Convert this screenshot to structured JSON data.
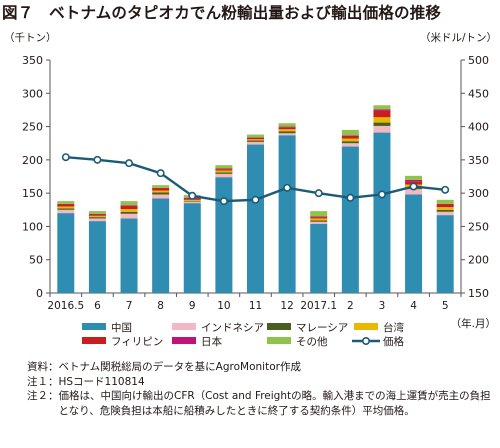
{
  "figure": {
    "title": "図７　ベトナムのタピオカでん粉輸出量および輸出価格の推移",
    "unit_left": "（千トン）",
    "unit_right": "（米ドル/トン）",
    "x_unit": "（年.月）"
  },
  "chart_data": {
    "type": "bar",
    "stacked": true,
    "title": "図７　ベトナムのタピオカでん粉輸出量および輸出価格の推移",
    "categories": [
      "2016.5",
      "6",
      "7",
      "8",
      "9",
      "10",
      "11",
      "12",
      "2017.1",
      "2",
      "3",
      "4",
      "5"
    ],
    "y_left": {
      "label": "（千トン）",
      "lim": [
        0,
        350
      ],
      "ticks": [
        0,
        50,
        100,
        150,
        200,
        250,
        300,
        350
      ]
    },
    "y_right": {
      "label": "（米ドル/トン）",
      "lim": [
        150,
        500
      ],
      "ticks": [
        150,
        200,
        250,
        300,
        350,
        400,
        450,
        500
      ]
    },
    "xlabel": "（年.月）",
    "series": [
      {
        "name": "中国",
        "color": "#2e8db0",
        "values": [
          120,
          108,
          112,
          142,
          135,
          174,
          223,
          237,
          104,
          220,
          241,
          148,
          117
        ]
      },
      {
        "name": "インドネシア",
        "color": "#f2b8c4",
        "values": [
          5,
          4,
          7,
          6,
          2,
          5,
          4,
          3,
          3,
          5,
          10,
          8,
          5
        ]
      },
      {
        "name": "マレーシア",
        "color": "#4a5e23",
        "values": [
          2,
          2,
          3,
          3,
          1,
          2,
          2,
          3,
          2,
          3,
          5,
          3,
          3
        ]
      },
      {
        "name": "台湾",
        "color": "#e9b900",
        "values": [
          3,
          2,
          4,
          3,
          2,
          3,
          2,
          3,
          3,
          4,
          8,
          4,
          4
        ]
      },
      {
        "name": "フィリピン",
        "color": "#c81e1e",
        "values": [
          3,
          2,
          5,
          3,
          2,
          2,
          2,
          3,
          2,
          4,
          10,
          5,
          4
        ]
      },
      {
        "name": "日本",
        "color": "#c2127a",
        "values": [
          1,
          1,
          1,
          1,
          1,
          1,
          1,
          1,
          1,
          1,
          2,
          2,
          1
        ]
      },
      {
        "name": "その他",
        "color": "#8ec44a",
        "values": [
          4,
          4,
          6,
          4,
          4,
          5,
          4,
          5,
          8,
          8,
          6,
          6,
          6
        ]
      }
    ],
    "line": {
      "name": "価格",
      "axis": "right",
      "color": "#1d5a77",
      "values": [
        354,
        350,
        345,
        330,
        296,
        288,
        290,
        308,
        300,
        293,
        298,
        310,
        305
      ]
    },
    "legend": [
      "中国",
      "インドネシア",
      "マレーシア",
      "台湾",
      "フィリピン",
      "日本",
      "その他",
      "価格"
    ],
    "legend_position": "bottom",
    "grid": false
  },
  "notes": [
    {
      "head": "資料：",
      "body": "ベトナム関税総局のデータを基にAgroMonitor作成"
    },
    {
      "head": "注１：",
      "body": "HSコード110814"
    },
    {
      "head": "注２：",
      "body": "価格は、中国向け輸出のCFR（Cost and Freightの略。輸入港までの海上運賃が売主の負担となり、危険負担は本船に船積みしたときに終了する契約条件）平均価格。"
    }
  ]
}
